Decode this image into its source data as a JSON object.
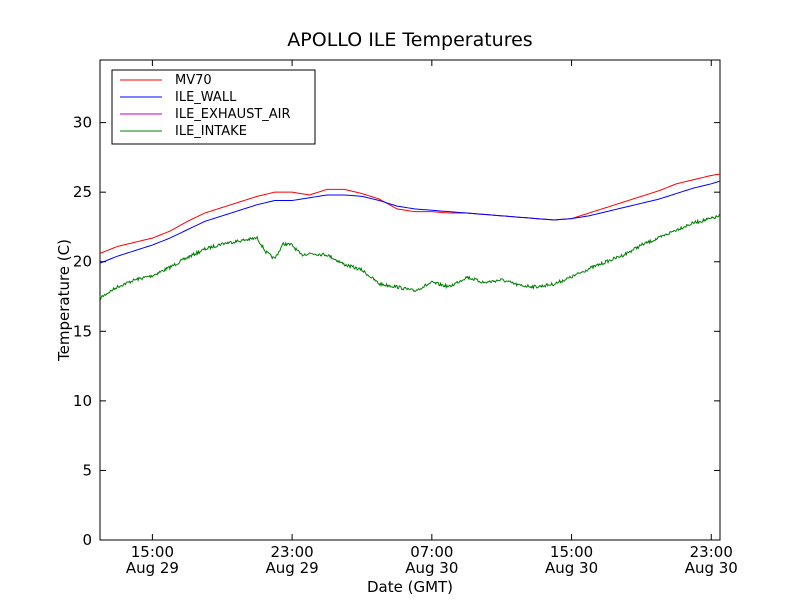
{
  "chart_data": {
    "type": "line",
    "title": "APOLLO ILE Temperatures",
    "xlabel": "Date (GMT)",
    "ylabel": "Temperature (C)",
    "x_unit": "datetime GMT",
    "xlim": [
      "2013-08-29T12:00",
      "2013-08-30T23:30"
    ],
    "ylim": [
      0,
      34.5
    ],
    "yticks": [
      0,
      5,
      10,
      15,
      20,
      25,
      30
    ],
    "xticks": [
      {
        "t": "2013-08-29T15:00",
        "line1": "15:00",
        "line2": "Aug 29"
      },
      {
        "t": "2013-08-29T23:00",
        "line1": "23:00",
        "line2": "Aug 29"
      },
      {
        "t": "2013-08-30T07:00",
        "line1": "07:00",
        "line2": "Aug 30"
      },
      {
        "t": "2013-08-30T15:00",
        "line1": "15:00",
        "line2": "Aug 30"
      },
      {
        "t": "2013-08-30T23:00",
        "line1": "23:00",
        "line2": "Aug 30"
      }
    ],
    "grid": false,
    "legend_position": "top-left",
    "series": [
      {
        "name": "MV70",
        "color": "#ff0000",
        "x": [
          "2013-08-29T12:00",
          "2013-08-29T13:00",
          "2013-08-29T14:00",
          "2013-08-29T15:00",
          "2013-08-29T16:00",
          "2013-08-29T17:00",
          "2013-08-29T18:00",
          "2013-08-29T19:00",
          "2013-08-29T20:00",
          "2013-08-29T21:00",
          "2013-08-29T22:00",
          "2013-08-29T23:00",
          "2013-08-30T00:00",
          "2013-08-30T01:00",
          "2013-08-30T02:00",
          "2013-08-30T03:00",
          "2013-08-30T04:00",
          "2013-08-30T05:00",
          "2013-08-30T06:00",
          "2013-08-30T07:00",
          "2013-08-30T08:00",
          "2013-08-30T09:00",
          "2013-08-30T10:00",
          "2013-08-30T11:00",
          "2013-08-30T12:00",
          "2013-08-30T13:00",
          "2013-08-30T14:00",
          "2013-08-30T15:00",
          "2013-08-30T16:00",
          "2013-08-30T17:00",
          "2013-08-30T18:00",
          "2013-08-30T19:00",
          "2013-08-30T20:00",
          "2013-08-30T21:00",
          "2013-08-30T22:00",
          "2013-08-30T23:00",
          "2013-08-30T23:30"
        ],
        "y": [
          20.6,
          21.1,
          21.4,
          21.7,
          22.2,
          22.9,
          23.5,
          23.9,
          24.3,
          24.7,
          25.0,
          25.0,
          24.8,
          25.2,
          25.2,
          24.9,
          24.5,
          23.8,
          23.6,
          23.6,
          23.5,
          23.5,
          23.4,
          23.3,
          23.2,
          23.1,
          23.0,
          23.1,
          23.5,
          23.9,
          24.3,
          24.7,
          25.1,
          25.6,
          25.9,
          26.2,
          26.3
        ]
      },
      {
        "name": "ILE_WALL",
        "color": "#0000ff",
        "x": [
          "2013-08-29T12:00",
          "2013-08-29T13:00",
          "2013-08-29T14:00",
          "2013-08-29T15:00",
          "2013-08-29T16:00",
          "2013-08-29T17:00",
          "2013-08-29T18:00",
          "2013-08-29T19:00",
          "2013-08-29T20:00",
          "2013-08-29T21:00",
          "2013-08-29T22:00",
          "2013-08-29T23:00",
          "2013-08-30T00:00",
          "2013-08-30T01:00",
          "2013-08-30T02:00",
          "2013-08-30T03:00",
          "2013-08-30T04:00",
          "2013-08-30T05:00",
          "2013-08-30T06:00",
          "2013-08-30T07:00",
          "2013-08-30T08:00",
          "2013-08-30T09:00",
          "2013-08-30T10:00",
          "2013-08-30T11:00",
          "2013-08-30T12:00",
          "2013-08-30T13:00",
          "2013-08-30T14:00",
          "2013-08-30T15:00",
          "2013-08-30T16:00",
          "2013-08-30T17:00",
          "2013-08-30T18:00",
          "2013-08-30T19:00",
          "2013-08-30T20:00",
          "2013-08-30T21:00",
          "2013-08-30T22:00",
          "2013-08-30T23:00",
          "2013-08-30T23:30"
        ],
        "y": [
          19.9,
          20.4,
          20.8,
          21.2,
          21.7,
          22.3,
          22.9,
          23.3,
          23.7,
          24.1,
          24.4,
          24.4,
          24.6,
          24.8,
          24.8,
          24.7,
          24.4,
          24.0,
          23.8,
          23.7,
          23.6,
          23.5,
          23.4,
          23.3,
          23.2,
          23.1,
          23.0,
          23.1,
          23.3,
          23.6,
          23.9,
          24.2,
          24.5,
          24.9,
          25.3,
          25.6,
          25.8
        ]
      },
      {
        "name": "ILE_EXHAUST_AIR",
        "color": "#bf00bf",
        "x": [],
        "y": []
      },
      {
        "name": "ILE_INTAKE",
        "color": "#007f00",
        "x": [
          "2013-08-29T12:00",
          "2013-08-29T13:00",
          "2013-08-29T14:00",
          "2013-08-29T15:00",
          "2013-08-29T16:00",
          "2013-08-29T17:00",
          "2013-08-29T18:00",
          "2013-08-29T19:00",
          "2013-08-29T20:00",
          "2013-08-29T21:00",
          "2013-08-29T21:30",
          "2013-08-29T22:00",
          "2013-08-29T22:30",
          "2013-08-29T23:00",
          "2013-08-29T23:30",
          "2013-08-30T00:00",
          "2013-08-30T01:00",
          "2013-08-30T02:00",
          "2013-08-30T03:00",
          "2013-08-30T04:00",
          "2013-08-30T05:00",
          "2013-08-30T06:00",
          "2013-08-30T07:00",
          "2013-08-30T08:00",
          "2013-08-30T09:00",
          "2013-08-30T10:00",
          "2013-08-30T11:00",
          "2013-08-30T12:00",
          "2013-08-30T13:00",
          "2013-08-30T14:00",
          "2013-08-30T15:00",
          "2013-08-30T16:00",
          "2013-08-30T17:00",
          "2013-08-30T18:00",
          "2013-08-30T19:00",
          "2013-08-30T20:00",
          "2013-08-30T21:00",
          "2013-08-30T22:00",
          "2013-08-30T23:00",
          "2013-08-30T23:30"
        ],
        "y": [
          17.4,
          18.2,
          18.7,
          19.0,
          19.6,
          20.3,
          20.9,
          21.3,
          21.5,
          21.7,
          20.7,
          20.2,
          21.3,
          21.2,
          20.5,
          20.6,
          20.5,
          19.8,
          19.4,
          18.4,
          18.2,
          17.9,
          18.5,
          18.2,
          18.9,
          18.5,
          18.7,
          18.3,
          18.2,
          18.4,
          18.9,
          19.5,
          20.0,
          20.5,
          21.2,
          21.7,
          22.3,
          22.8,
          23.1,
          23.3
        ]
      }
    ]
  }
}
